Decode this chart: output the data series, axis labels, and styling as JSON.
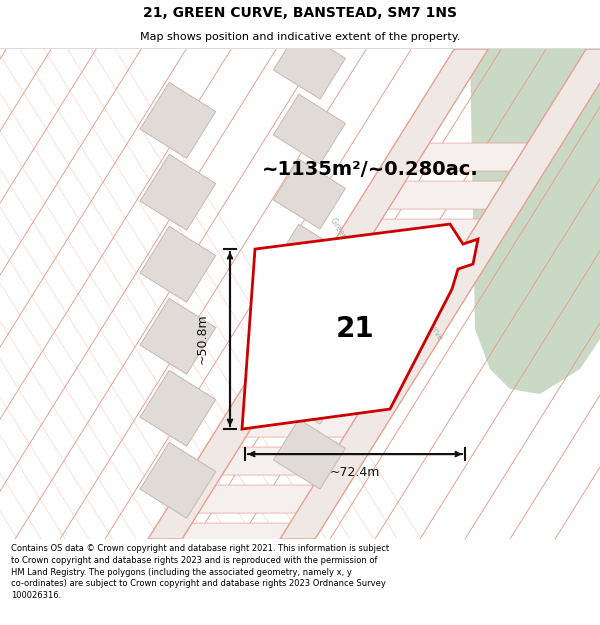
{
  "title": "21, GREEN CURVE, BANSTEAD, SM7 1NS",
  "subtitle": "Map shows position and indicative extent of the property.",
  "footer": "Contains OS data © Crown copyright and database right 2021. This information is subject to Crown copyright and database rights 2023 and is reproduced with the permission of HM Land Registry. The polygons (including the associated geometry, namely x, y co-ordinates) are subject to Crown copyright and database rights 2023 Ordnance Survey 100026316.",
  "area_label": "~1135m²/~0.280ac.",
  "width_label": "~72.4m",
  "height_label": "~50.8m",
  "number_label": "21",
  "map_bg": "#faf6f4",
  "green_color": "#c9d9c5",
  "plot_line_color": "#e8a090",
  "building_fill": "#e0dbd6",
  "building_stroke": "#c8b8b0",
  "road_fill": "#f0e8e5",
  "property_outline": "#cc0000",
  "property_fill": "#ffffff",
  "dim_color": "#111111",
  "label_color": "#111111",
  "road_label_color": "#aaaaaa",
  "title_size": 10,
  "subtitle_size": 8,
  "footer_size": 6,
  "area_label_size": 14,
  "number_size": 20,
  "dim_label_size": 9
}
